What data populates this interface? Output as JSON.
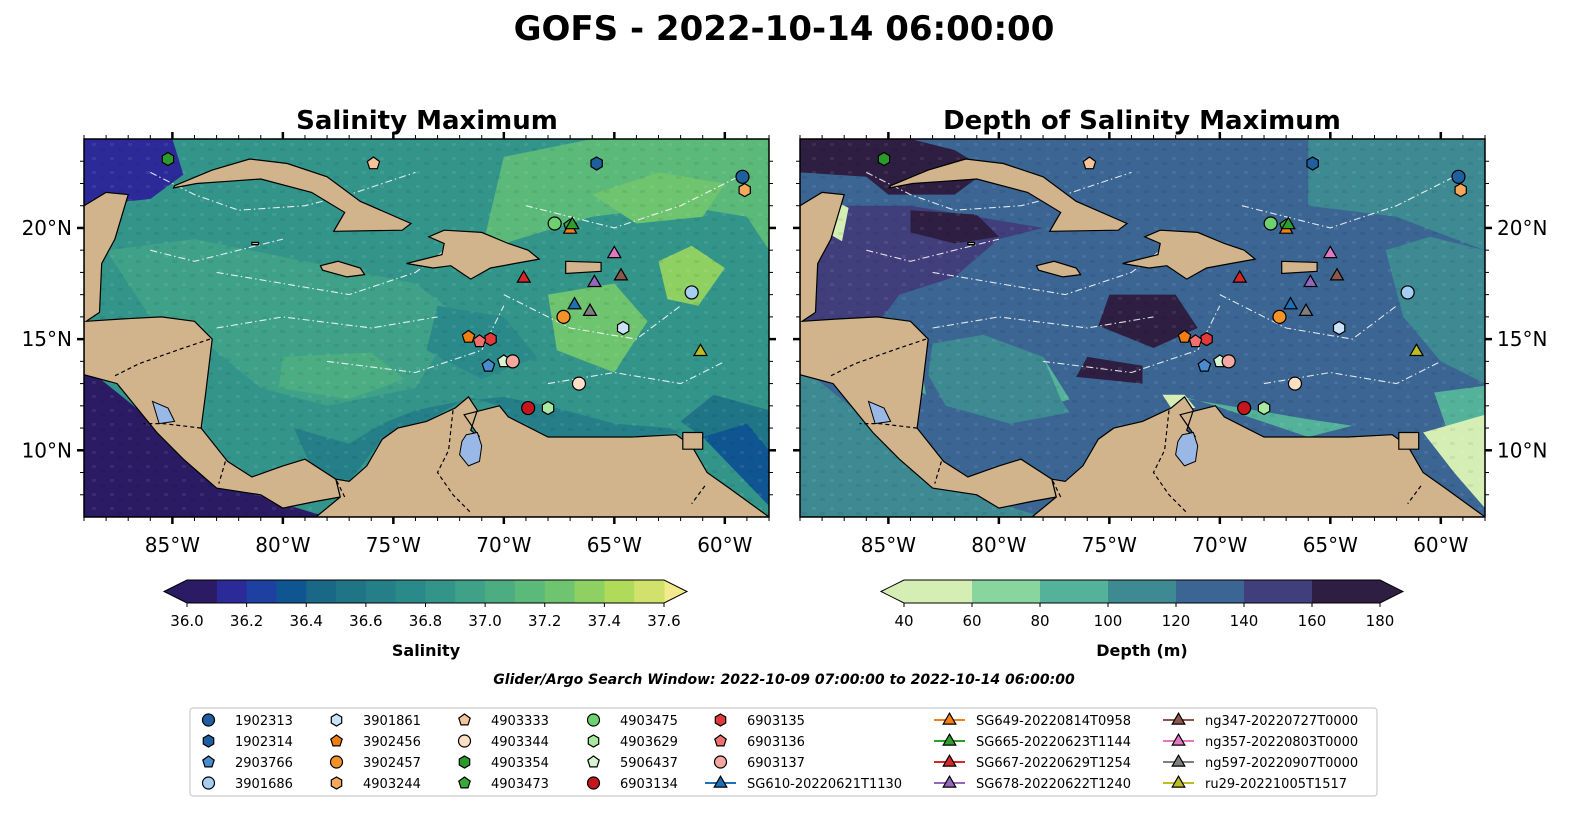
{
  "figure": {
    "suptitle": "GOFS - 2022-10-14 06:00:00",
    "search_window": "Glider/Argo Search Window: 2022-10-09 07:00:00 to 2022-10-14 06:00:00"
  },
  "chart_data": [
    {
      "type": "heatmap",
      "title": "Salinity Maximum",
      "colorbar": {
        "label": "Salinity",
        "ticks": [
          "36.0",
          "36.2",
          "36.4",
          "36.6",
          "36.8",
          "37.0",
          "37.2",
          "37.4",
          "37.6"
        ],
        "levels": [
          36.0,
          36.1,
          36.2,
          36.3,
          36.4,
          36.5,
          36.6,
          36.7,
          36.8,
          36.9,
          37.0,
          37.1,
          37.2,
          37.3,
          37.4,
          37.5,
          37.6
        ],
        "colors": [
          "#2a1b64",
          "#2c2a99",
          "#1e40a0",
          "#0f5592",
          "#186886",
          "#1f7485",
          "#247f88",
          "#2a8a8a",
          "#33958a",
          "#3ea188",
          "#4cad82",
          "#5bb97a",
          "#6fc46f",
          "#8ed061",
          "#b0da5a",
          "#d0e26c",
          "#f2ea8c"
        ],
        "extend": "both"
      },
      "x_ticks": [
        "85°W",
        "80°W",
        "75°W",
        "70°W",
        "65°W",
        "60°W"
      ],
      "y_ticks": [
        "20°N",
        "15°N",
        "10°N"
      ],
      "xlim": [
        -89,
        -58
      ],
      "ylim": [
        7,
        24
      ]
    },
    {
      "type": "heatmap",
      "title": "Depth of Salinity Maximum",
      "colorbar": {
        "label": "Depth (m)",
        "ticks": [
          "40",
          "60",
          "80",
          "100",
          "120",
          "140",
          "160",
          "180"
        ],
        "levels": [
          40,
          60,
          80,
          100,
          120,
          140,
          160,
          180
        ],
        "colors": [
          "#d4eeb4",
          "#89d5a0",
          "#55b29a",
          "#3e8a92",
          "#3b6593",
          "#403f7c",
          "#2e1e42"
        ],
        "extend": "both"
      },
      "x_ticks": [
        "85°W",
        "80°W",
        "75°W",
        "70°W",
        "65°W",
        "60°W"
      ],
      "y_ticks": [
        "20°N",
        "15°N",
        "10°N"
      ],
      "xlim": [
        -89,
        -58
      ],
      "ylim": [
        7,
        24
      ]
    }
  ],
  "markers": [
    {
      "id": "1902313",
      "shape": "circle",
      "color": "#1f5fa0",
      "lon": -59.2,
      "lat": 22.3
    },
    {
      "id": "1902314",
      "shape": "hexagon",
      "color": "#1f5fa0",
      "lon": -65.8,
      "lat": 22.9
    },
    {
      "id": "2903766",
      "shape": "pentagon",
      "color": "#4a8cd0",
      "lon": -70.7,
      "lat": 13.8
    },
    {
      "id": "3901686",
      "shape": "circle",
      "color": "#a6cef2",
      "lon": -61.5,
      "lat": 17.1
    },
    {
      "id": "3901861",
      "shape": "hexagon",
      "color": "#c9e2f7",
      "lon": -64.6,
      "lat": 15.5
    },
    {
      "id": "3902456",
      "shape": "pentagon",
      "color": "#f07e10",
      "lon": -71.6,
      "lat": 15.1
    },
    {
      "id": "3902457",
      "shape": "circle",
      "color": "#f4922a",
      "lon": -67.3,
      "lat": 16.0
    },
    {
      "id": "4903244",
      "shape": "hexagon",
      "color": "#f5a85a",
      "lon": -59.1,
      "lat": 21.7
    },
    {
      "id": "4903333",
      "shape": "pentagon",
      "color": "#f6c49a",
      "lon": -75.9,
      "lat": 22.9
    },
    {
      "id": "4903344",
      "shape": "circle",
      "color": "#fbe0c6",
      "lon": -66.6,
      "lat": 13.0
    },
    {
      "id": "4903354",
      "shape": "hexagon",
      "color": "#2a9a2a",
      "lon": -85.2,
      "lat": 23.1
    },
    {
      "id": "4903473",
      "shape": "pentagon",
      "color": "#3aa83a",
      "lon": -67.0,
      "lat": 20.1
    },
    {
      "id": "4903475",
      "shape": "circle",
      "color": "#6fd06f",
      "lon": -67.7,
      "lat": 20.2
    },
    {
      "id": "4903629",
      "shape": "hexagon",
      "color": "#a8e8a0",
      "lon": -68.0,
      "lat": 11.9
    },
    {
      "id": "5906437",
      "shape": "pentagon",
      "color": "#d6f6cf",
      "lon": -70.0,
      "lat": 14.0
    },
    {
      "id": "6903134",
      "shape": "circle",
      "color": "#c4161c",
      "lon": -68.9,
      "lat": 11.9
    },
    {
      "id": "6903135",
      "shape": "hexagon",
      "color": "#e03a3a",
      "lon": -70.6,
      "lat": 15.0
    },
    {
      "id": "6903136",
      "shape": "pentagon",
      "color": "#f07070",
      "lon": -71.1,
      "lat": 14.9
    },
    {
      "id": "6903137",
      "shape": "circle",
      "color": "#f6a8a0",
      "lon": -69.6,
      "lat": 14.0
    },
    {
      "id": "SG610-20220621T1130",
      "shape": "triangle",
      "color": "#1f6fb4",
      "lon": -66.8,
      "lat": 16.6
    },
    {
      "id": "SG649-20220814T0958",
      "shape": "triangle",
      "color": "#f57f17",
      "lon": -67.0,
      "lat": 20.0
    },
    {
      "id": "SG665-20220623T1144",
      "shape": "triangle",
      "color": "#2ca02c",
      "lon": -66.9,
      "lat": 20.2
    },
    {
      "id": "SG667-20220629T1254",
      "shape": "triangle",
      "color": "#d62728",
      "lon": -69.1,
      "lat": 17.8
    },
    {
      "id": "SG678-20220622T1240",
      "shape": "triangle",
      "color": "#9467bd",
      "lon": -65.9,
      "lat": 17.6
    },
    {
      "id": "ng347-20220727T0000",
      "shape": "triangle",
      "color": "#8c564b",
      "lon": -64.7,
      "lat": 17.9
    },
    {
      "id": "ng357-20220803T0000",
      "shape": "triangle",
      "color": "#e377c2",
      "lon": -65.0,
      "lat": 18.9
    },
    {
      "id": "ng597-20220907T0000",
      "shape": "triangle",
      "color": "#7f7f7f",
      "lon": -66.1,
      "lat": 16.3
    },
    {
      "id": "ru29-20221005T1517",
      "shape": "triangle",
      "color": "#bcbd22",
      "lon": -61.1,
      "lat": 14.5
    }
  ]
}
